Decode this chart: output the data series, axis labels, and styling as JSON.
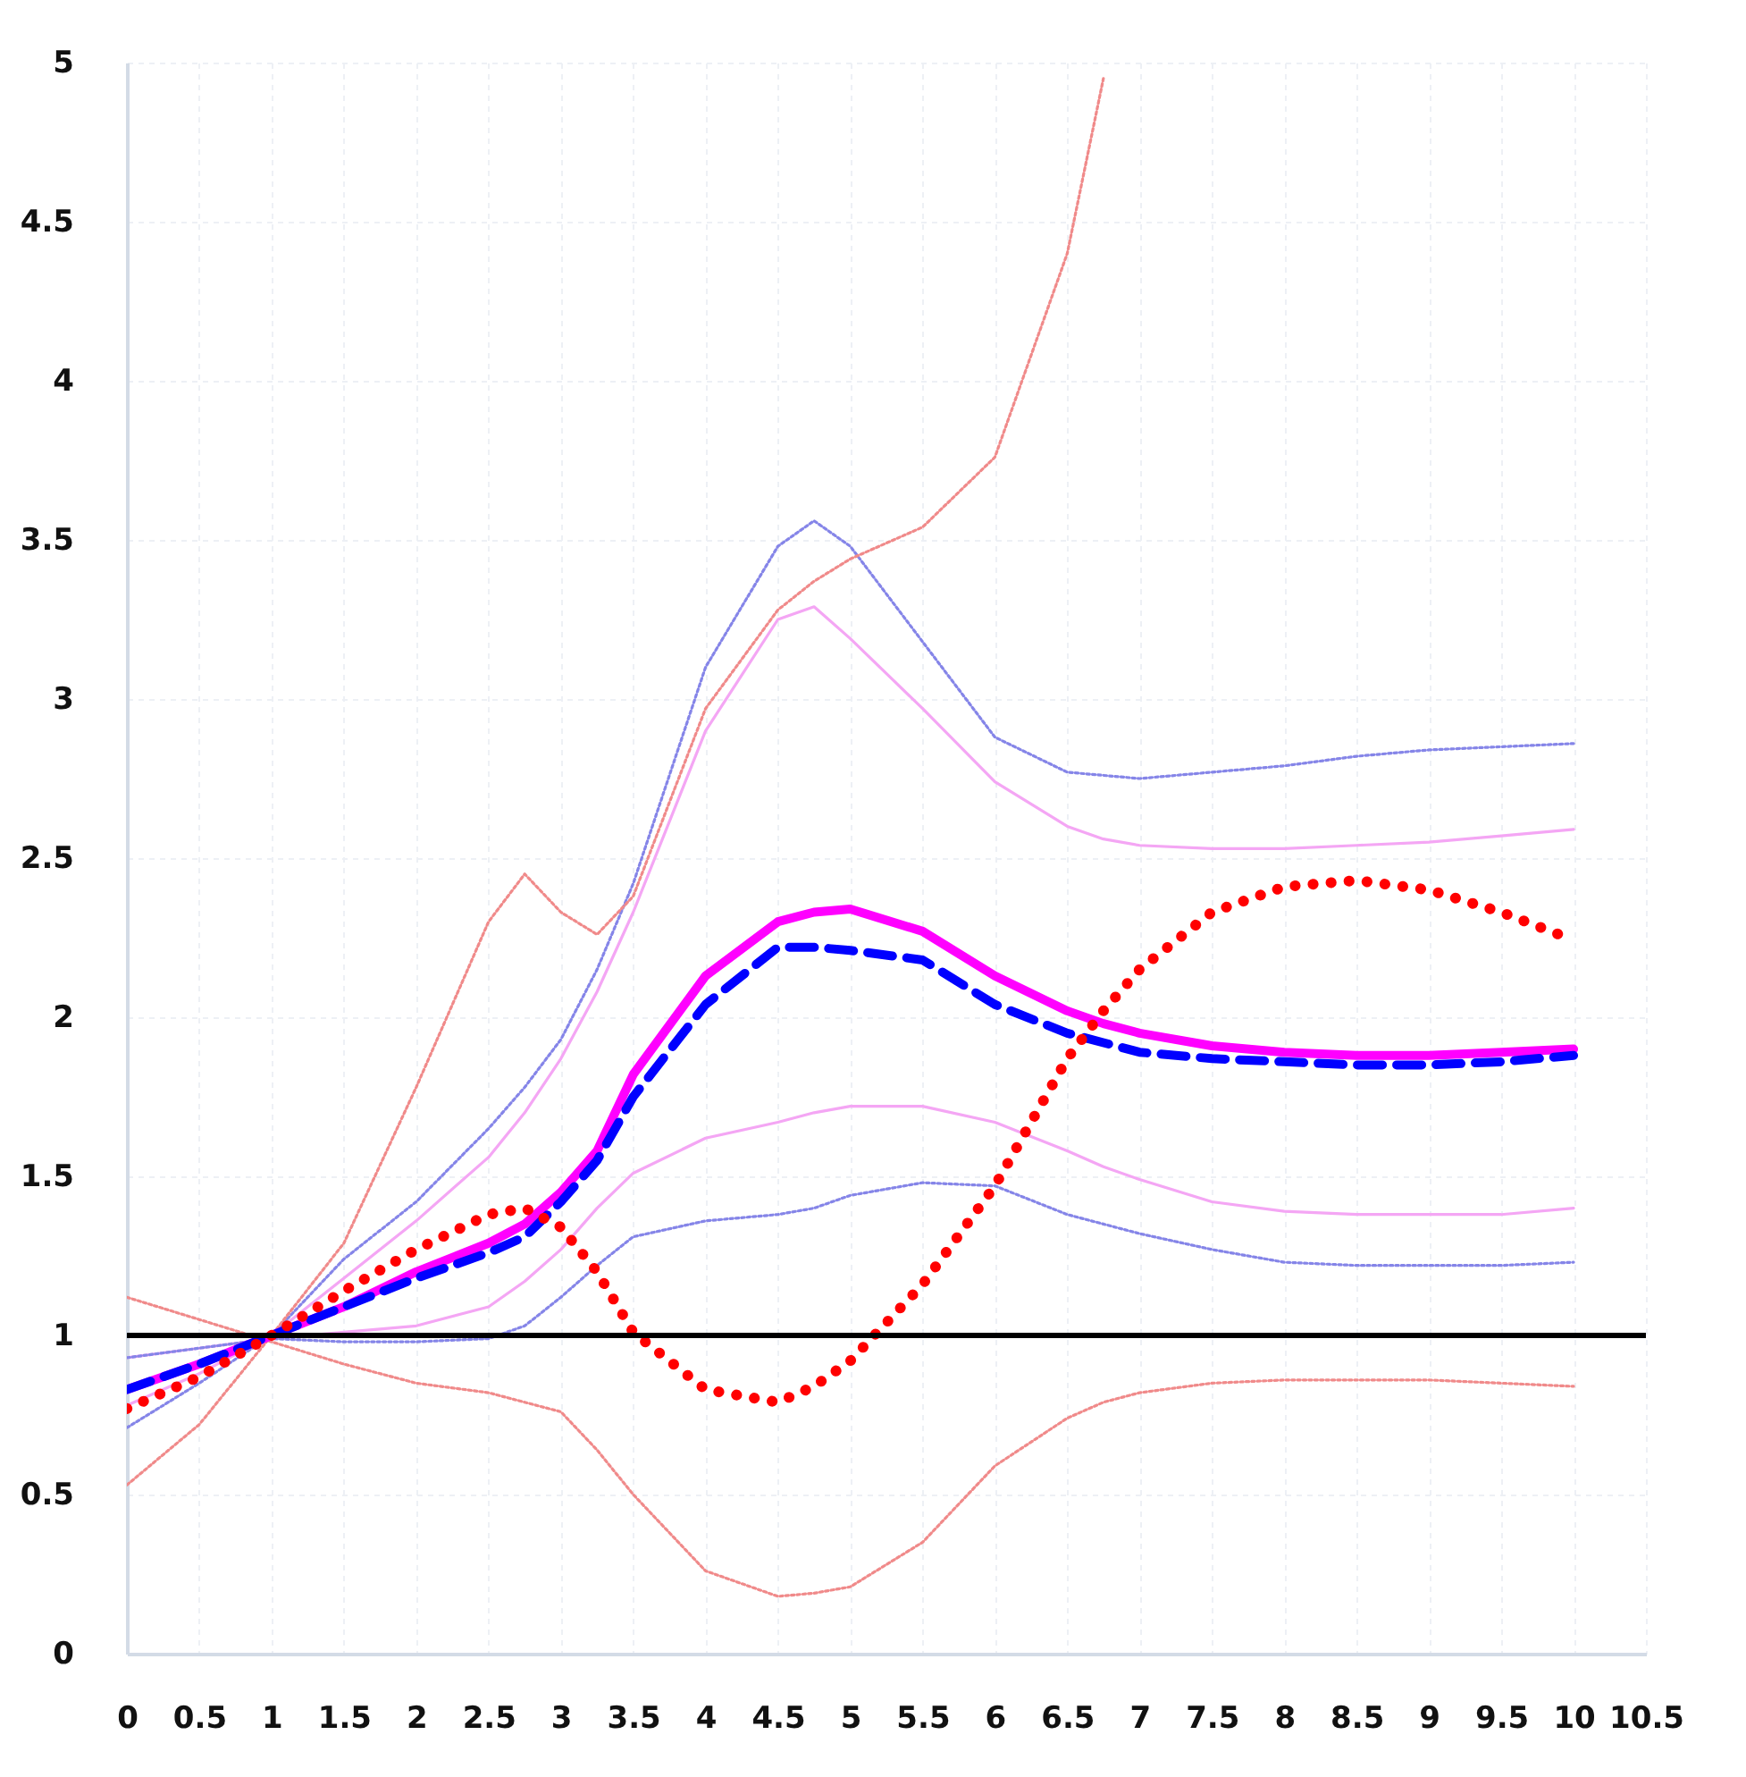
{
  "chart_data": {
    "type": "line",
    "x": [
      0,
      0.5,
      1,
      1.5,
      2,
      2.5,
      2.75,
      3,
      3.25,
      3.5,
      4,
      4.5,
      4.75,
      5,
      5.5,
      6,
      6.5,
      6.75,
      7,
      7.5,
      8,
      8.5,
      9,
      9.5,
      10
    ],
    "series": [
      {
        "color": "#f4a6f4",
        "line_style": "solid",
        "values": [
          0.93,
          0.96,
          0.99,
          1.01,
          1.03,
          1.09,
          1.17,
          1.27,
          1.4,
          1.51,
          1.62,
          1.67,
          1.7,
          1.72,
          1.72,
          1.67,
          1.58,
          1.53,
          1.49,
          1.42,
          1.39,
          1.38,
          1.38,
          1.38,
          1.4
        ]
      },
      {
        "color": "#f4a6f4",
        "line_style": "solid",
        "values": [
          0.78,
          0.88,
          1.0,
          1.18,
          1.36,
          1.56,
          1.7,
          1.87,
          2.08,
          2.33,
          2.9,
          3.25,
          3.29,
          3.19,
          2.97,
          2.74,
          2.6,
          2.56,
          2.54,
          2.53,
          2.53,
          2.54,
          2.55,
          2.57,
          2.59
        ]
      },
      {
        "color": "#8585e8",
        "line_style": "dotted",
        "values": [
          0.93,
          0.96,
          0.99,
          0.98,
          0.98,
          0.99,
          1.03,
          1.12,
          1.22,
          1.31,
          1.36,
          1.38,
          1.4,
          1.44,
          1.48,
          1.47,
          1.38,
          1.35,
          1.32,
          1.27,
          1.23,
          1.22,
          1.22,
          1.22,
          1.23
        ]
      },
      {
        "color": "#8585e8",
        "line_style": "dotted",
        "values": [
          0.71,
          0.85,
          1.0,
          1.24,
          1.42,
          1.65,
          1.78,
          1.93,
          2.15,
          2.42,
          3.1,
          3.48,
          3.56,
          3.48,
          3.18,
          2.88,
          2.77,
          2.76,
          2.75,
          2.77,
          2.79,
          2.82,
          2.84,
          2.85,
          2.86
        ]
      },
      {
        "color": "#f08a8a",
        "line_style": "dotted",
        "values": [
          1.12,
          1.05,
          0.98,
          0.91,
          0.85,
          0.82,
          0.79,
          0.76,
          0.64,
          0.5,
          0.26,
          0.18,
          0.19,
          0.21,
          0.35,
          0.59,
          0.74,
          0.79,
          0.82,
          0.85,
          0.86,
          0.86,
          0.86,
          0.85,
          0.84
        ]
      },
      {
        "color": "#f08a8a",
        "line_style": "dotted",
        "x": [
          0,
          0.5,
          1,
          1.5,
          2,
          2.5,
          2.75,
          3,
          3.25,
          3.5,
          4,
          4.5,
          4.75,
          5,
          5.5,
          6,
          6.5,
          6.75
        ],
        "values": [
          0.53,
          0.72,
          1.0,
          1.29,
          1.78,
          2.3,
          2.45,
          2.33,
          2.26,
          2.38,
          2.97,
          3.28,
          3.37,
          3.44,
          3.54,
          3.76,
          4.4,
          4.95
        ]
      },
      {
        "color": "#ff00ff",
        "line_style": "solid",
        "values": [
          0.83,
          0.91,
          1.0,
          1.09,
          1.2,
          1.29,
          1.35,
          1.45,
          1.58,
          1.82,
          2.13,
          2.3,
          2.33,
          2.34,
          2.27,
          2.13,
          2.02,
          1.98,
          1.95,
          1.91,
          1.89,
          1.88,
          1.88,
          1.89,
          1.9
        ]
      },
      {
        "color": "#0000ff",
        "line_style": "dashed",
        "values": [
          0.83,
          0.91,
          1.0,
          1.09,
          1.18,
          1.26,
          1.31,
          1.42,
          1.55,
          1.75,
          2.04,
          2.22,
          2.22,
          2.21,
          2.18,
          2.04,
          1.95,
          1.92,
          1.89,
          1.87,
          1.86,
          1.85,
          1.85,
          1.86,
          1.88
        ]
      },
      {
        "color": "#ff0000",
        "line_style": "dotted",
        "x": [
          0,
          0.5,
          1,
          1.5,
          2,
          2.5,
          2.75,
          3,
          3.25,
          3.5,
          4,
          4.5,
          4.75,
          5,
          5.5,
          6,
          6.5,
          6.75,
          7,
          7.5,
          8,
          8.5,
          9,
          9.5,
          9.9
        ],
        "values": [
          0.77,
          0.87,
          1.0,
          1.14,
          1.27,
          1.38,
          1.4,
          1.34,
          1.2,
          1.01,
          0.83,
          0.79,
          0.84,
          0.92,
          1.16,
          1.47,
          1.87,
          2.02,
          2.15,
          2.33,
          2.41,
          2.43,
          2.4,
          2.33,
          2.26
        ]
      }
    ],
    "xlim": [
      0,
      10.5
    ],
    "xticks": [
      0,
      0.5,
      1,
      1.5,
      2,
      2.5,
      3,
      3.5,
      4,
      4.5,
      5,
      5.5,
      6,
      6.5,
      7,
      7.5,
      8,
      8.5,
      9,
      9.5,
      10,
      10.5
    ],
    "ylim": [
      0,
      5
    ],
    "yticks": [
      0,
      0.5,
      1,
      1.5,
      2,
      2.5,
      3,
      3.5,
      4,
      4.5,
      5
    ],
    "grid": true,
    "ref_lines": [
      {
        "axis": "y",
        "value": 1,
        "color": "#000000"
      }
    ]
  }
}
